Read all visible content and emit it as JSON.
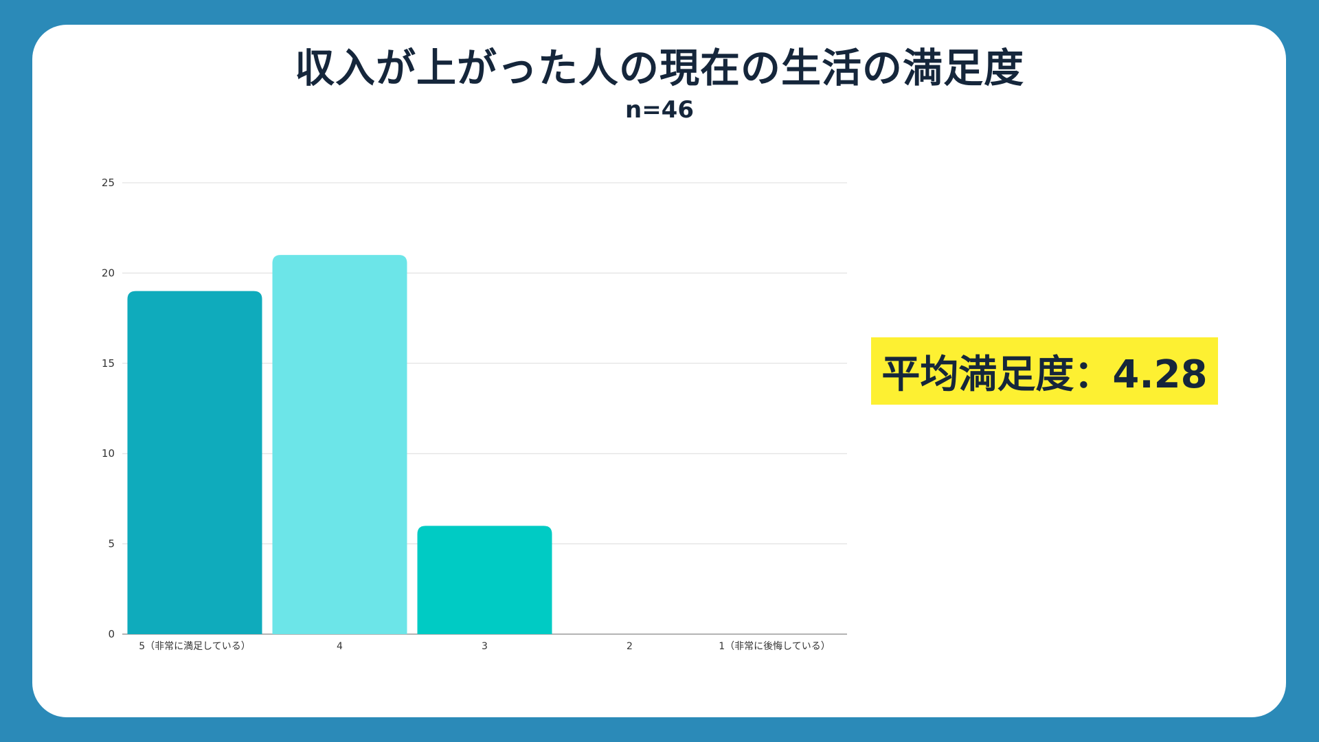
{
  "title": "収入が上がった人の現在の生活の満足度",
  "subtitle": "n=46",
  "badge": {
    "label": "平均満足度：4.28",
    "bg_color": "#fdf032"
  },
  "chart_data": {
    "type": "bar",
    "title": "収入が上がった人の現在の生活の満足度",
    "subtitle": "n=46",
    "categories": [
      "5（非常に満足している）",
      "4",
      "3",
      "2",
      "1（非常に後悔している）"
    ],
    "values": [
      19,
      21,
      6,
      0,
      0
    ],
    "colors": [
      "#0fabbc",
      "#6ce5e8",
      "#00cbc4",
      "#0fabbc",
      "#0fabbc"
    ],
    "yticks": [
      "0",
      "5",
      "10",
      "15",
      "20",
      "25"
    ],
    "ylim": [
      0,
      25
    ],
    "grid": true,
    "legend": "none"
  }
}
